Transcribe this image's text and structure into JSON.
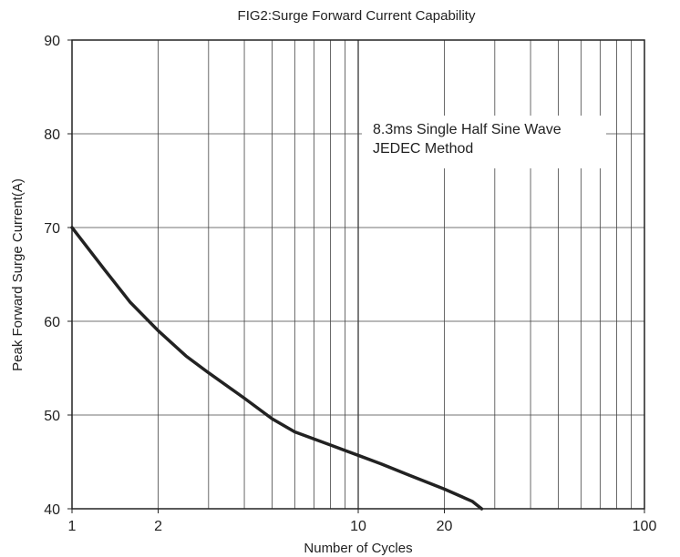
{
  "chart_data": {
    "type": "line",
    "title": "FIG2:Surge Forward Current Capability",
    "xlabel": "Number of Cycles",
    "ylabel": "Peak Forward Surge Current(A)",
    "x_scale": "log",
    "xlim": [
      1,
      100
    ],
    "ylim": [
      40,
      90
    ],
    "x_ticks": [
      1,
      2,
      10,
      20,
      100
    ],
    "x_tick_labels": [
      "1",
      "2",
      "10",
      "20",
      "100"
    ],
    "y_ticks": [
      40,
      50,
      60,
      70,
      80,
      90
    ],
    "y_tick_labels": [
      "40",
      "50",
      "60",
      "70",
      "80",
      "90"
    ],
    "grid": true,
    "annotation": [
      "8.3ms Single Half Sine Wave",
      "JEDEC Method"
    ],
    "series": [
      {
        "color": "#222222",
        "x": [
          1,
          1.3,
          1.6,
          2,
          2.5,
          3,
          4,
          5,
          6,
          8,
          10,
          12,
          15,
          20,
          25,
          27
        ],
        "y": [
          70,
          65.5,
          62,
          59,
          56.3,
          54.5,
          51.8,
          49.6,
          48.2,
          46.8,
          45.7,
          44.8,
          43.6,
          42.1,
          40.8,
          40
        ]
      }
    ]
  }
}
